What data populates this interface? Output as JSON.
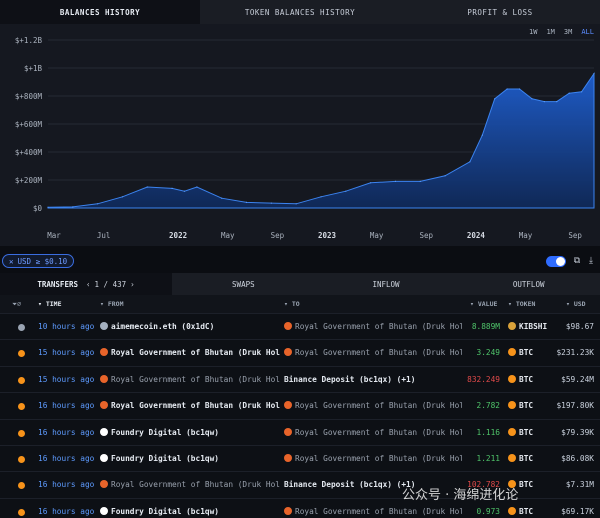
{
  "top_tabs": [
    {
      "label": "BALANCES HISTORY",
      "active": true
    },
    {
      "label": "TOKEN BALANCES HISTORY",
      "active": false
    },
    {
      "label": "PROFIT & LOSS",
      "active": false
    }
  ],
  "range_buttons": [
    "1W",
    "1M",
    "3M",
    "ALL"
  ],
  "chart_data": {
    "type": "area",
    "title": "",
    "xlabel": "",
    "ylabel": "",
    "y_ticks": [
      "$+1.2B",
      "$+1B",
      "$+800M",
      "$+600M",
      "$+400M",
      "$+200M",
      "$0"
    ],
    "x_ticks": [
      "Mar",
      "Jul",
      "2022",
      "May",
      "Sep",
      "2023",
      "May",
      "Sep",
      "2024",
      "May",
      "Sep"
    ],
    "ylim": [
      0,
      1200
    ],
    "unit": "USD millions",
    "grid": true,
    "series": [
      {
        "x": [
          "2021-03",
          "2021-05",
          "2021-07",
          "2021-09",
          "2021-11",
          "2022-01",
          "2022-02",
          "2022-03",
          "2022-05",
          "2022-07",
          "2022-09",
          "2022-11",
          "2023-01",
          "2023-03",
          "2023-05",
          "2023-07",
          "2023-09",
          "2023-11",
          "2024-01",
          "2024-02",
          "2024-03",
          "2024-04",
          "2024-05",
          "2024-06",
          "2024-07",
          "2024-08",
          "2024-09",
          "2024-10",
          "2024-11"
        ],
        "values": [
          5,
          8,
          30,
          80,
          150,
          140,
          120,
          150,
          70,
          40,
          35,
          30,
          80,
          120,
          180,
          190,
          190,
          230,
          330,
          520,
          780,
          850,
          850,
          780,
          760,
          760,
          820,
          830,
          960
        ]
      }
    ],
    "accent": "#2a6fd6"
  },
  "filter": {
    "chip": "USD ≥ $0.10"
  },
  "section_tabs": {
    "transfers": "TRANSFERS",
    "page": "1 / 437",
    "swaps": "SWAPS",
    "inflow": "INFLOW",
    "outflow": "OUTFLOW"
  },
  "table": {
    "headers": {
      "time": "TIME",
      "from": "FROM",
      "to": "TO",
      "value": "VALUE",
      "token": "TOKEN",
      "usd": "USD"
    },
    "rows": [
      {
        "time": "10 hours ago",
        "from": "aimemecoin.eth (0x1dC)",
        "to": "Royal Government of Bhutan (Druk Holding",
        "value": "8.889M",
        "token": "KIBSHI",
        "usd": "$98.67"
      },
      {
        "time": "15 hours ago",
        "from": "Royal Government of Bhutan (Druk Holding",
        "to": "Royal Government of Bhutan (Druk Holding",
        "value": "3.249",
        "token": "BTC",
        "usd": "$231.23K"
      },
      {
        "time": "15 hours ago",
        "from": "Royal Government of Bhutan (Druk Holding",
        "to": "Binance Deposit (bc1qx) (+1)",
        "value": "832.249",
        "token": "BTC",
        "usd": "$59.24M"
      },
      {
        "time": "16 hours ago",
        "from": "Royal Government of Bhutan (Druk Holding",
        "to": "Royal Government of Bhutan (Druk Holding",
        "value": "2.782",
        "token": "BTC",
        "usd": "$197.80K"
      },
      {
        "time": "16 hours ago",
        "from": "Foundry Digital (bc1qw)",
        "to": "Royal Government of Bhutan (Druk Holding",
        "value": "1.116",
        "token": "BTC",
        "usd": "$79.39K"
      },
      {
        "time": "16 hours ago",
        "from": "Foundry Digital (bc1qw)",
        "to": "Royal Government of Bhutan (Druk Holding",
        "value": "1.211",
        "token": "BTC",
        "usd": "$86.08K"
      },
      {
        "time": "16 hours ago",
        "from": "Royal Government of Bhutan (Druk Holding",
        "to": "Binance Deposit (bc1qx) (+1)",
        "value": "102.782",
        "token": "BTC",
        "usd": "$7.31M"
      },
      {
        "time": "16 hours ago",
        "from": "Foundry Digital (bc1qw)",
        "to": "Royal Government of Bhutan (Druk Holding",
        "value": "0.973",
        "token": "BTC",
        "usd": "$69.17K"
      }
    ]
  },
  "watermark": "公众号 · 海绵进化论"
}
